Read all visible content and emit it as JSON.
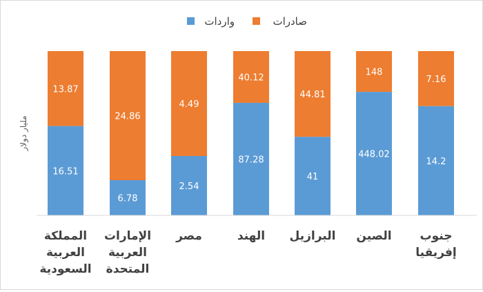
{
  "chart_data": {
    "type": "bar",
    "stacked": true,
    "percent_stacked": true,
    "title": "",
    "ylabel": "مليار دولار",
    "xlabel": "",
    "legend_position": "top",
    "grid": false,
    "categories": [
      [
        "جنوب",
        "إفريقيا"
      ],
      [
        "الصين"
      ],
      [
        "البرازيل"
      ],
      [
        "الهند"
      ],
      [
        "مصر"
      ],
      [
        "الإمارات",
        "العربية",
        "المتحدة"
      ],
      [
        "المملكة",
        "العربية",
        "السعودية"
      ]
    ],
    "series": [
      {
        "name": "واردات",
        "color": "#5b9bd5",
        "values": [
          14.2,
          448.02,
          41,
          87.28,
          2.54,
          6.78,
          16.51
        ]
      },
      {
        "name": "صادرات",
        "color": "#ed7d31",
        "values": [
          7.16,
          148,
          44.81,
          40.12,
          4.49,
          24.86,
          13.87
        ]
      }
    ],
    "value_labels": {
      "واردات": [
        "14.2",
        "448.02",
        "41",
        "87.28",
        "2.54",
        "6.78",
        "16.51"
      ],
      "صادرات": [
        "7.16",
        "148",
        "44.81",
        "40.12",
        "4.49",
        "24.86",
        "13.87"
      ]
    }
  },
  "colors": {
    "label_text": "#ffffff",
    "axis_text": "#404040",
    "axis_line": "#d9d9d9"
  }
}
